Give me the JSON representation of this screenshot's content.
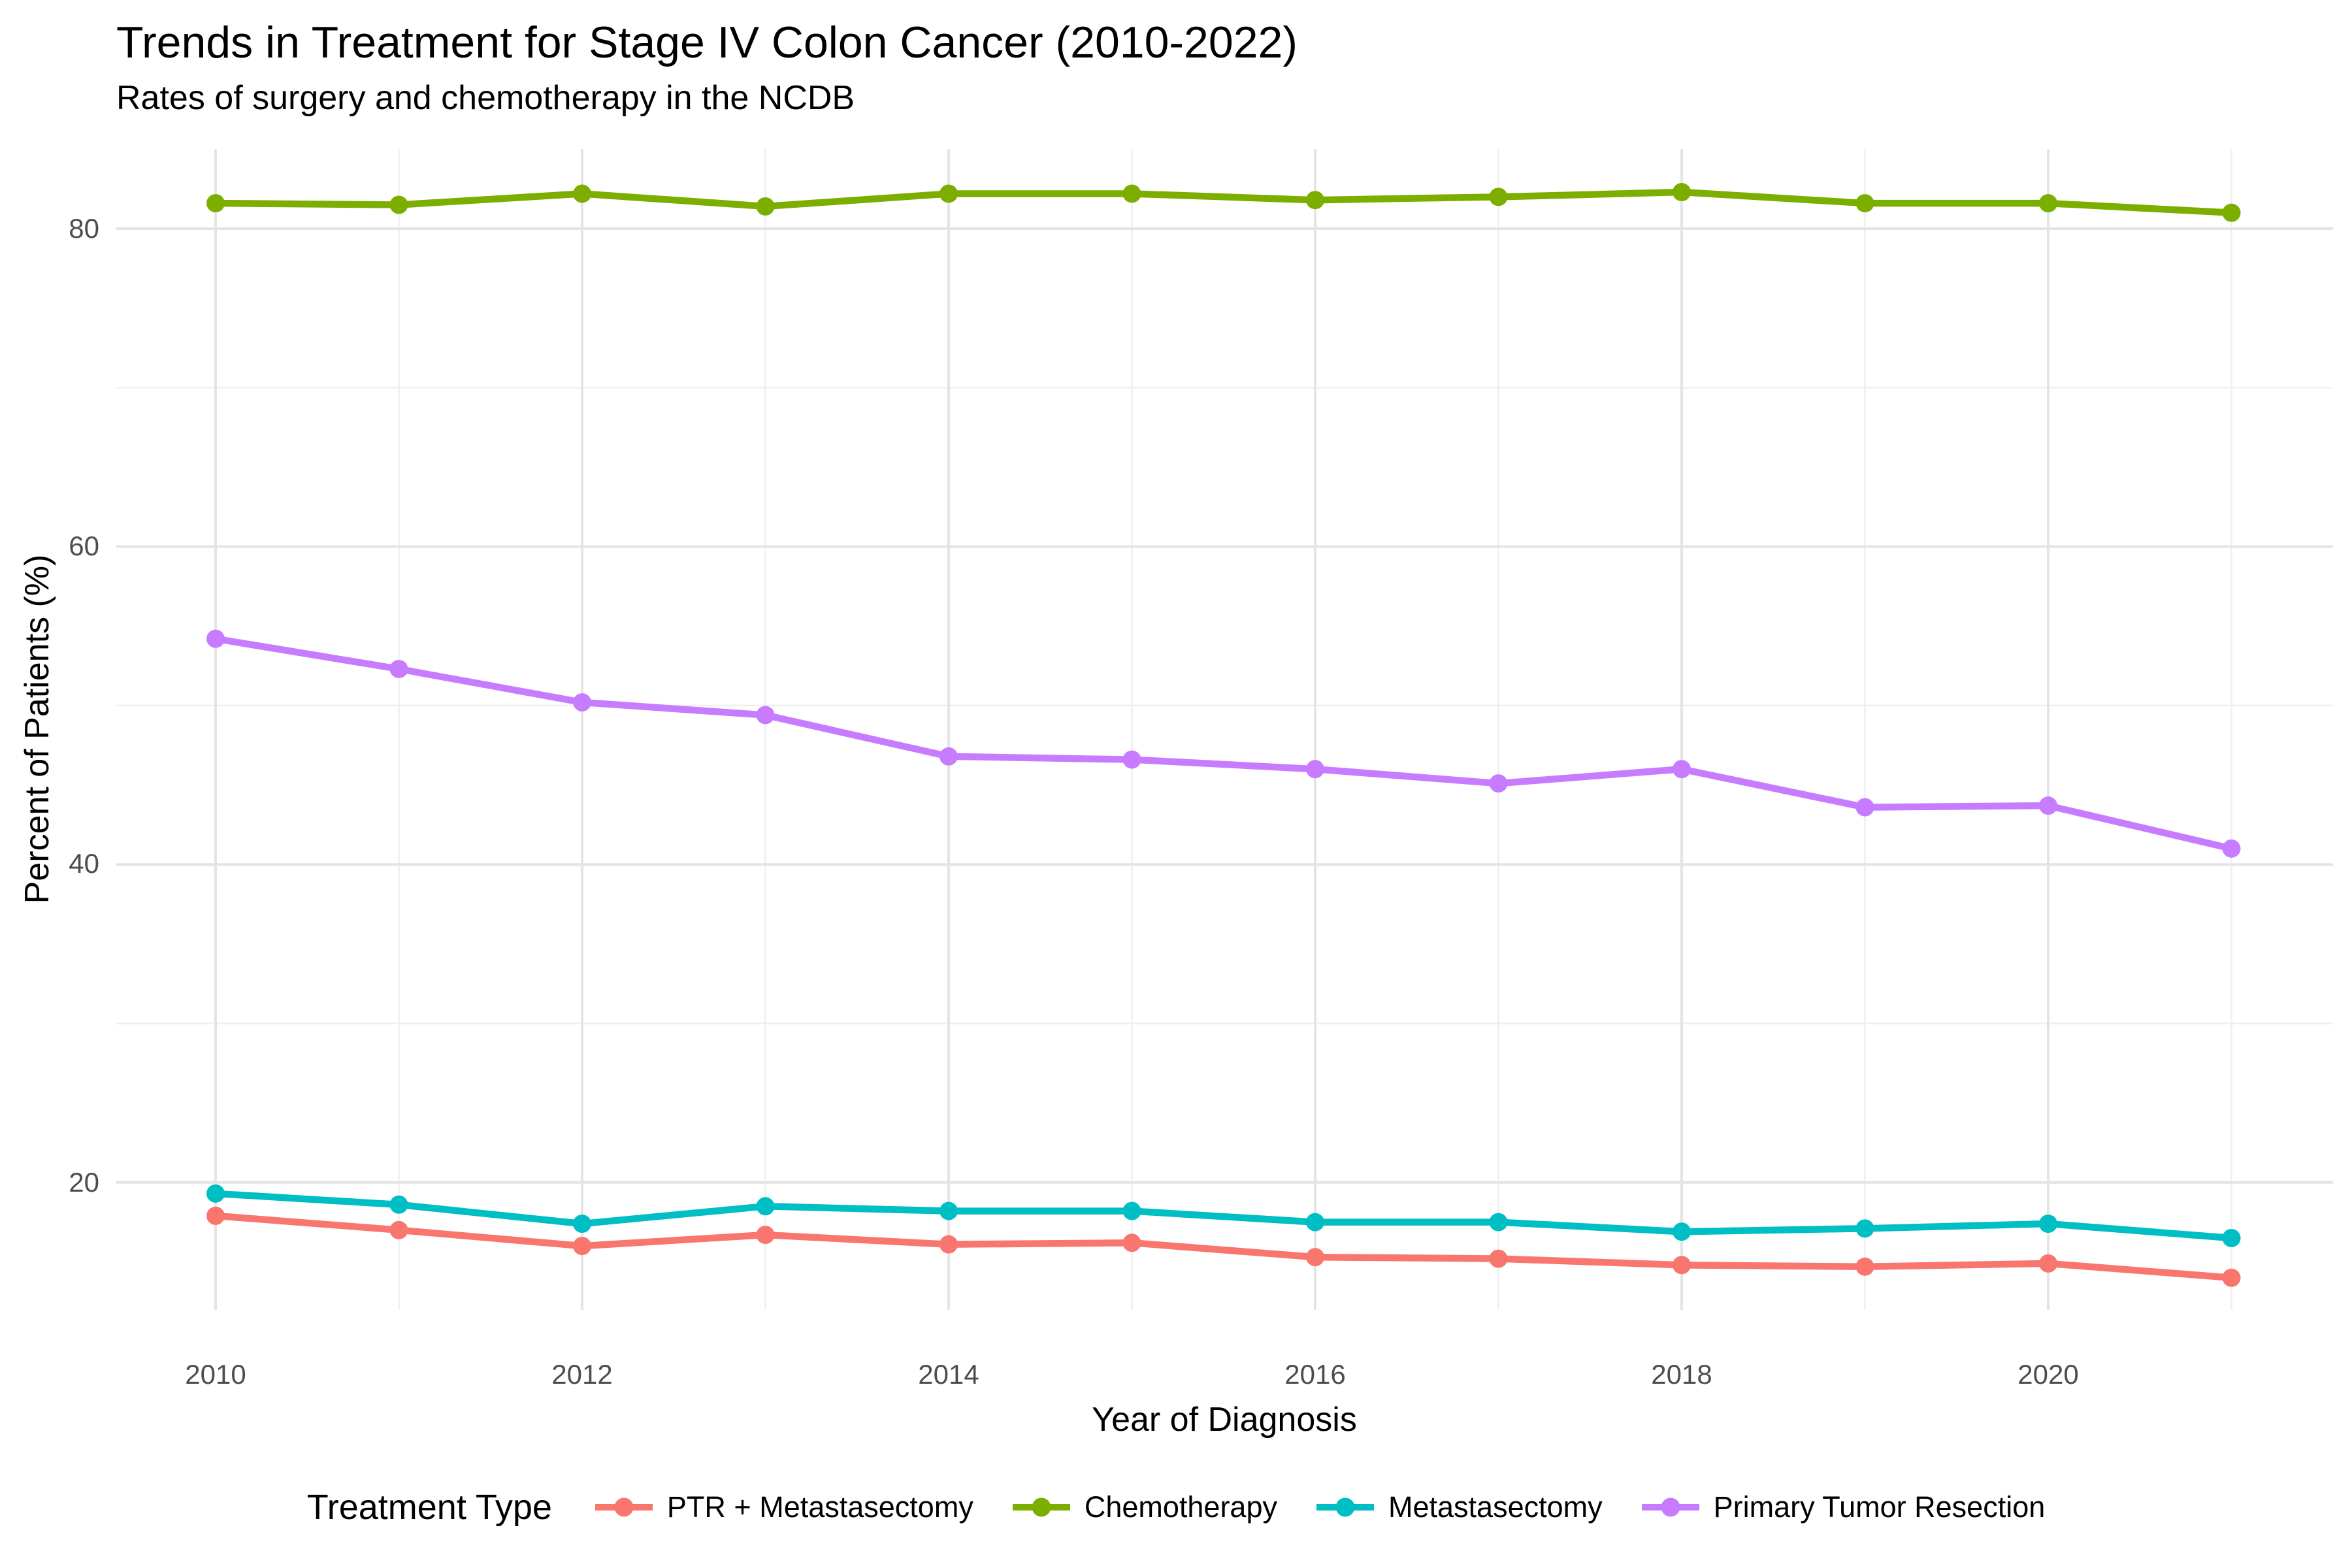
{
  "header": {
    "title": "Trends in Treatment for Stage IV Colon Cancer (2010-2022)",
    "subtitle": "Rates of surgery and chemotherapy in the NCDB"
  },
  "chart_data": {
    "type": "line",
    "title": "Trends in Treatment for Stage IV Colon Cancer (2010-2022)",
    "subtitle": "Rates of surgery and chemotherapy in the NCDB",
    "xlabel": "Year of Diagnosis",
    "ylabel": "Percent of Patients (%)",
    "legend_title": "Treatment Type",
    "legend_position": "bottom",
    "grid": true,
    "x": [
      2010,
      2011,
      2012,
      2013,
      2014,
      2015,
      2016,
      2017,
      2018,
      2019,
      2020,
      2021
    ],
    "x_major_ticks": [
      2010,
      2012,
      2014,
      2016,
      2018,
      2020
    ],
    "y_major_ticks": [
      20,
      40,
      60,
      80
    ],
    "y_minor_ticks": [
      30,
      50,
      70
    ],
    "xlim": [
      2009.45,
      2021.55
    ],
    "ylim": [
      11,
      85
    ],
    "colors": {
      "grid_major": "#E4E4E4",
      "grid_minor": "#EFEFEF",
      "tick_text": "#4D4D4D",
      "text": "#000000",
      "background": "#FFFFFF"
    },
    "series": [
      {
        "name": "PTR + Metastasectomy",
        "color": "#F8766D",
        "values": [
          17.9,
          17.0,
          16.0,
          16.7,
          16.1,
          16.2,
          15.3,
          15.2,
          14.8,
          14.7,
          14.9,
          14.0
        ]
      },
      {
        "name": "Chemotherapy",
        "color": "#7CAE00",
        "values": [
          81.6,
          81.5,
          82.2,
          81.4,
          82.2,
          82.2,
          81.8,
          82.0,
          82.3,
          81.6,
          81.6,
          81.0
        ]
      },
      {
        "name": "Metastasectomy",
        "color": "#00BFC4",
        "values": [
          19.3,
          18.6,
          17.4,
          18.5,
          18.2,
          18.2,
          17.5,
          17.5,
          16.9,
          17.1,
          17.4,
          16.5
        ]
      },
      {
        "name": "Primary Tumor Resection",
        "color": "#C77CFF",
        "values": [
          54.2,
          52.3,
          50.2,
          49.4,
          46.8,
          46.6,
          46.0,
          45.1,
          46.0,
          43.6,
          43.7,
          41.0
        ]
      }
    ]
  }
}
